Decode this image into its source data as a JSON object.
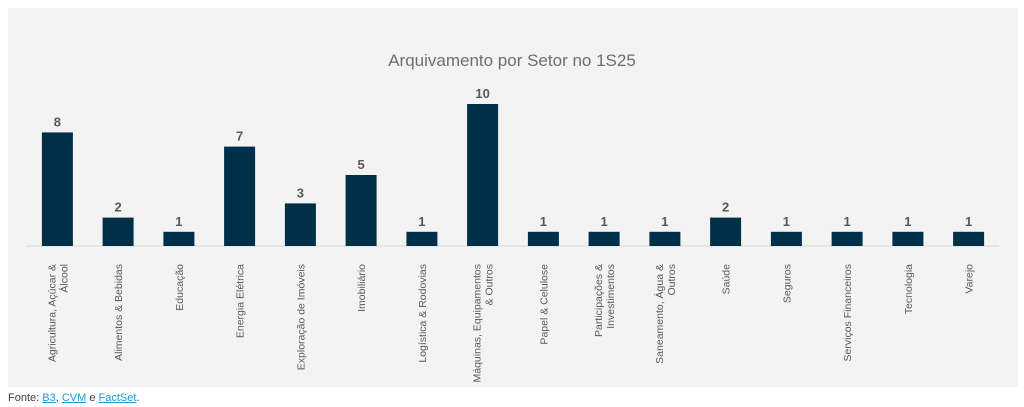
{
  "colors": {
    "bar": "#003049",
    "panel": "#f3f3f3",
    "axis": "#d9d9d9",
    "link": "#1a9bd7"
  },
  "chart_data": {
    "type": "bar",
    "title": "Arquivamento por Setor no 1S25",
    "xlabel": "",
    "ylabel": "",
    "ylim": [
      0,
      10
    ],
    "grid": false,
    "legend": "none",
    "categories": [
      "Agricultura, Açúcar & Álcool",
      "Alimentos & Bebidas",
      "Educação",
      "Energia Elétrica",
      "Exploração de Imóveis",
      "Imobiliário",
      "Logística & Rodovias",
      "Máquinas, Equipamentos & Outros",
      "Papel & Celulose",
      "Participações & Investimentos",
      "Saneamento, Água & Outros",
      "Saúde",
      "Seguros",
      "Serviços Financeiros",
      "Tecnologia",
      "Varejo"
    ],
    "tick_lines": [
      [
        "Agricultura, Açúcar &",
        "Álcool"
      ],
      [
        "Alimentos & Bebidas"
      ],
      [
        "Educação"
      ],
      [
        "Energia Elétrica"
      ],
      [
        "Exploração de Imóveis"
      ],
      [
        "Imobiliário"
      ],
      [
        "Logística & Rodovias"
      ],
      [
        "Máquinas, Equipamentos",
        "& Outros"
      ],
      [
        "Papel & Celulose"
      ],
      [
        "Participações &",
        "Investimentos"
      ],
      [
        "Saneamento, Água &",
        "Outros"
      ],
      [
        "Saúde"
      ],
      [
        "Seguros"
      ],
      [
        "Serviços Financeiros"
      ],
      [
        "Tecnologia"
      ],
      [
        "Varejo"
      ]
    ],
    "values": [
      8,
      2,
      1,
      7,
      3,
      5,
      1,
      10,
      1,
      1,
      1,
      2,
      1,
      1,
      1,
      1
    ]
  },
  "source": {
    "prefix": "Fonte: ",
    "b3": "B3",
    "sep1": ", ",
    "cvm": "CVM",
    "sep2": " e ",
    "factset": "FactSet",
    "suffix": "."
  }
}
